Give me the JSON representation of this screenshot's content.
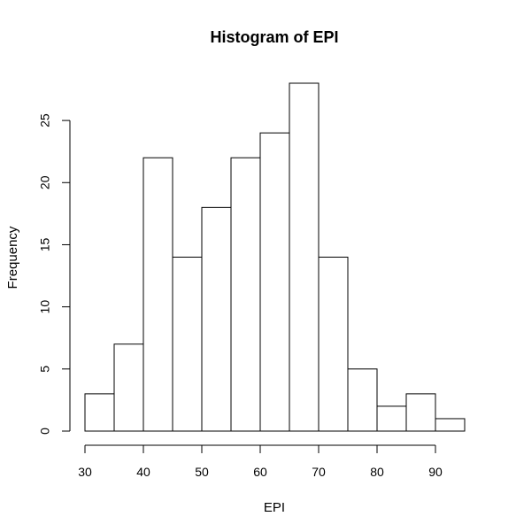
{
  "chart_data": {
    "type": "histogram",
    "title": "Histogram of EPI",
    "xlabel": "EPI",
    "ylabel": "Frequency",
    "bins": [
      {
        "start": 30,
        "end": 35,
        "count": 3
      },
      {
        "start": 35,
        "end": 40,
        "count": 7
      },
      {
        "start": 40,
        "end": 45,
        "count": 22
      },
      {
        "start": 45,
        "end": 50,
        "count": 14
      },
      {
        "start": 50,
        "end": 55,
        "count": 18
      },
      {
        "start": 55,
        "end": 60,
        "count": 22
      },
      {
        "start": 60,
        "end": 65,
        "count": 24
      },
      {
        "start": 65,
        "end": 70,
        "count": 28
      },
      {
        "start": 70,
        "end": 75,
        "count": 14
      },
      {
        "start": 75,
        "end": 80,
        "count": 5
      },
      {
        "start": 80,
        "end": 85,
        "count": 2
      },
      {
        "start": 85,
        "end": 90,
        "count": 3
      },
      {
        "start": 90,
        "end": 95,
        "count": 1
      }
    ],
    "xticks": [
      30,
      40,
      50,
      60,
      70,
      80,
      90
    ],
    "yticks": [
      0,
      5,
      10,
      15,
      20,
      25
    ],
    "xlim": [
      30,
      95
    ],
    "ylim": [
      0,
      28
    ],
    "bar_fill": "#ffffff",
    "bar_stroke": "#000000",
    "grid": false,
    "legend": "none"
  }
}
